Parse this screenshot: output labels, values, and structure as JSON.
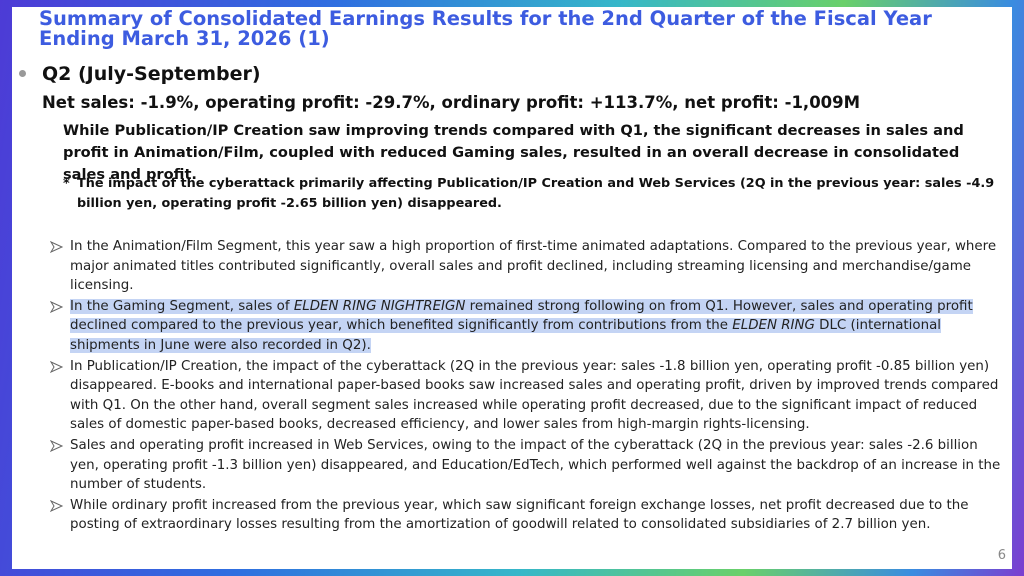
{
  "header": {
    "title": "Summary of Consolidated Earnings Results for the 2nd Quarter of the Fiscal Year Ending March 31, 2026 (1)"
  },
  "body": {
    "heading": "Q2 (July-September)",
    "summary": "Net sales: -1.9%, operating profit: -29.7%, ordinary profit: +113.7%, net profit: -1,009M",
    "overview": "While Publication/IP Creation saw improving trends compared with Q1, the significant decreases in sales and profit in Animation/Film, coupled with reduced Gaming sales, resulted in an overall decrease in consolidated sales and profit.",
    "note": {
      "marker": "*",
      "text": "The impact of the cyberattack primarily affecting Publication/IP Creation and Web Services (2Q in the previous year: sales -4.9 billion yen, operating profit -2.65 billion yen) disappeared."
    },
    "bullets": [
      {
        "segments": [
          {
            "text": "In the Animation/Film Segment, this year saw a high proportion of first-time animated adaptations. Compared to the previous year, where major animated titles contributed significantly, overall sales and profit declined, including streaming licensing and merchandise/game licensing."
          }
        ]
      },
      {
        "highlighted": true,
        "segments": [
          {
            "text": "In the Gaming Segment, sales of "
          },
          {
            "text": "ELDEN RING NIGHTREIGN",
            "italic": true
          },
          {
            "text": " remained strong following on from Q1. However, sales and operating profit declined compared to the previous year, which benefited significantly from contributions from the "
          },
          {
            "text": "ELDEN RING",
            "italic": true
          },
          {
            "text": " DLC (international shipments in June were also recorded in Q2)."
          }
        ]
      },
      {
        "segments": [
          {
            "text": "In Publication/IP Creation, the impact of the cyberattack (2Q in the previous year: sales -1.8 billion yen, operating profit -0.85 billion yen) disappeared. E-books and international paper-based books saw increased sales and operating profit, driven by improved trends compared with Q1. On the other hand, overall segment sales increased while operating profit decreased, due to the significant impact of reduced sales of domestic paper-based books, decreased efficiency, and lower sales from high-margin rights-licensing."
          }
        ]
      },
      {
        "segments": [
          {
            "text": "Sales and operating profit increased in Web Services, owing to the impact of the cyberattack (2Q in the previous year: sales -2.6 billion yen, operating profit -1.3 billion yen) disappeared, and Education/EdTech, which performed well against the backdrop of an increase in the number of students."
          }
        ]
      },
      {
        "segments": [
          {
            "text": "While ordinary profit increased from the previous year, which saw significant foreign exchange losses, net profit decreased due to the posting of extraordinary losses resulting from the amortization of goodwill related to consolidated subsidiaries of 2.7 billion yen."
          }
        ]
      }
    ]
  },
  "footer": {
    "page_number": 6
  }
}
